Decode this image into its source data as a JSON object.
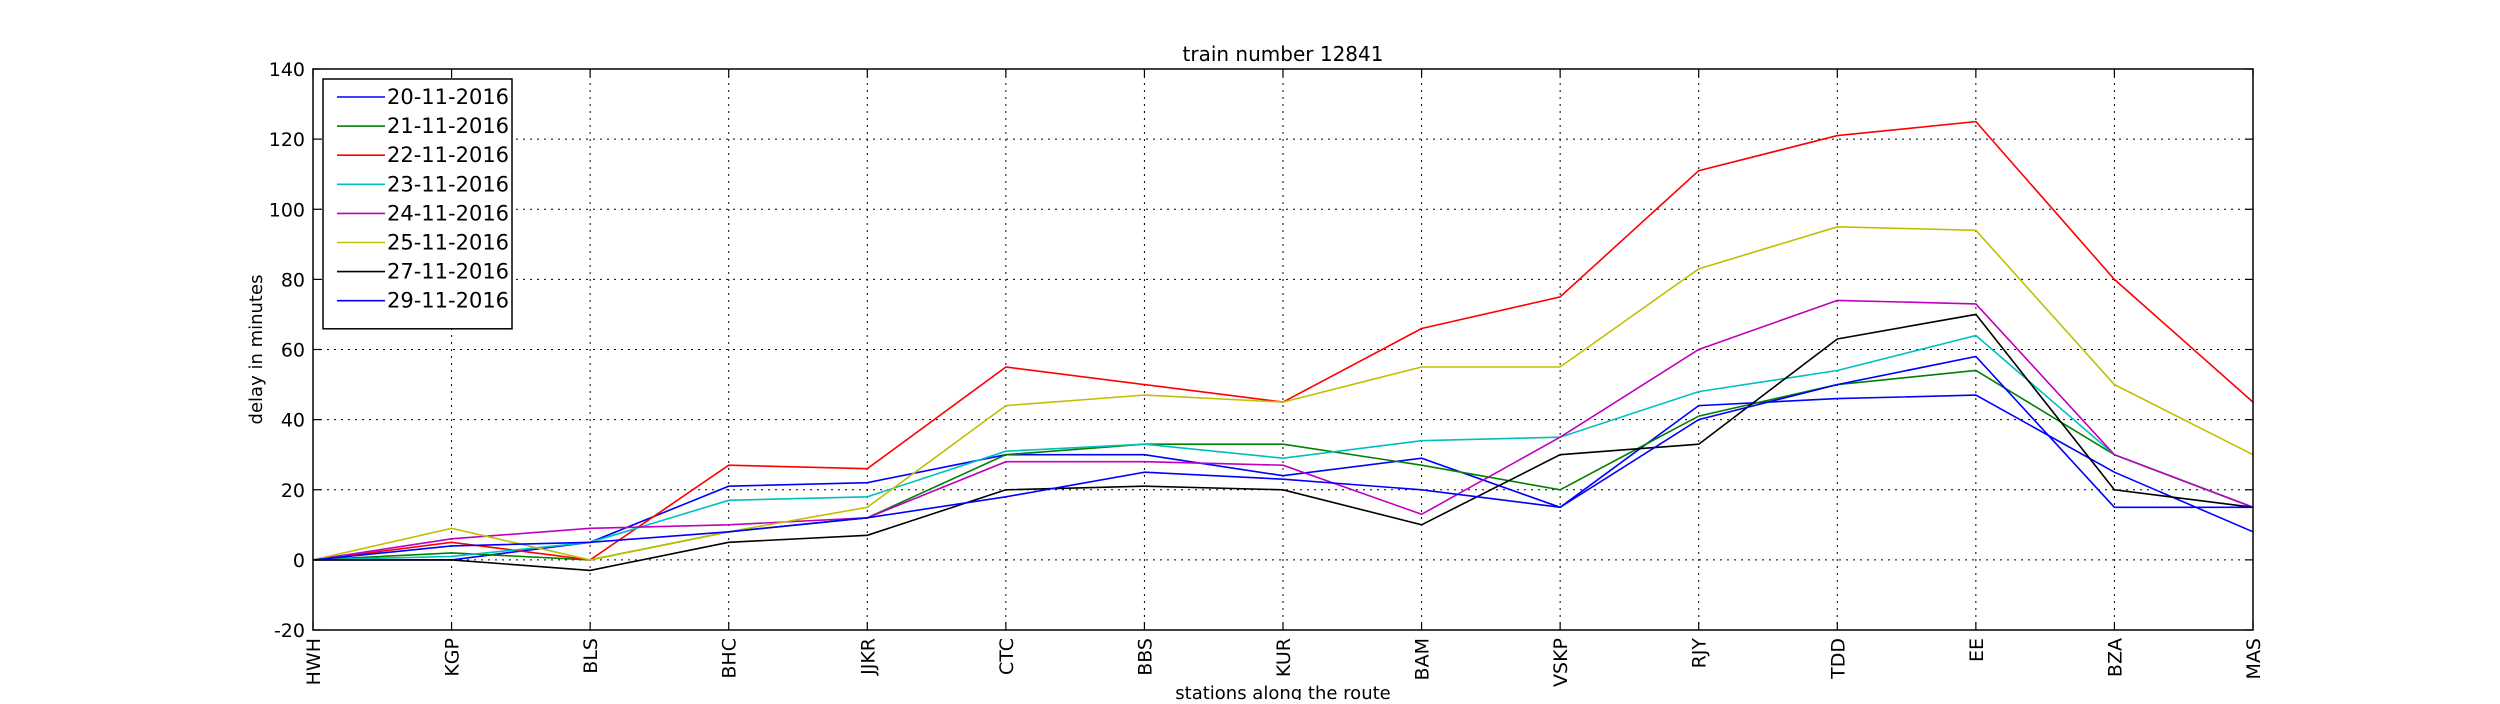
{
  "chart_data": {
    "type": "line",
    "title": "train number 12841",
    "xlabel": "stations along the route",
    "ylabel": "delay in minutes",
    "categories": [
      "HWH",
      "KGP",
      "BLS",
      "BHC",
      "JJKR",
      "CTC",
      "BBS",
      "KUR",
      "BAM",
      "VSKP",
      "RJY",
      "TDD",
      "EE",
      "BZA",
      "MAS"
    ],
    "ylim": [
      -20,
      140
    ],
    "yticks": [
      -20,
      0,
      20,
      40,
      60,
      80,
      100,
      120,
      140
    ],
    "grid": true,
    "legend_position": "upper-left",
    "series": [
      {
        "name": "20-11-2016",
        "color": "#0000ff",
        "values": [
          0,
          0,
          5,
          21,
          22,
          30,
          30,
          24,
          29,
          15,
          44,
          46,
          47,
          25,
          8
        ]
      },
      {
        "name": "21-11-2016",
        "color": "#008000",
        "values": [
          0,
          2,
          0,
          8,
          12,
          30,
          33,
          33,
          27,
          20,
          41,
          50,
          54,
          30,
          15
        ]
      },
      {
        "name": "22-11-2016",
        "color": "#ff0000",
        "values": [
          0,
          5,
          0,
          27,
          26,
          55,
          50,
          45,
          66,
          75,
          111,
          121,
          125,
          80,
          45
        ]
      },
      {
        "name": "23-11-2016",
        "color": "#00bfbf",
        "values": [
          0,
          1,
          5,
          17,
          18,
          31,
          33,
          29,
          34,
          35,
          48,
          54,
          64,
          30,
          15
        ]
      },
      {
        "name": "24-11-2016",
        "color": "#bf00bf",
        "values": [
          0,
          6,
          9,
          10,
          12,
          28,
          28,
          27,
          13,
          35,
          60,
          74,
          73,
          30,
          15
        ]
      },
      {
        "name": "25-11-2016",
        "color": "#bfbf00",
        "values": [
          0,
          9,
          0,
          8,
          15,
          44,
          47,
          45,
          55,
          55,
          83,
          95,
          94,
          50,
          30
        ]
      },
      {
        "name": "27-11-2016",
        "color": "#000000",
        "values": [
          0,
          0,
          -3,
          5,
          7,
          20,
          21,
          20,
          10,
          30,
          33,
          63,
          70,
          20,
          15
        ]
      },
      {
        "name": "29-11-2016",
        "color": "#0000ff",
        "values": [
          0,
          4,
          5,
          8,
          12,
          18,
          25,
          23,
          20,
          15,
          40,
          50,
          58,
          15,
          15
        ]
      }
    ]
  }
}
